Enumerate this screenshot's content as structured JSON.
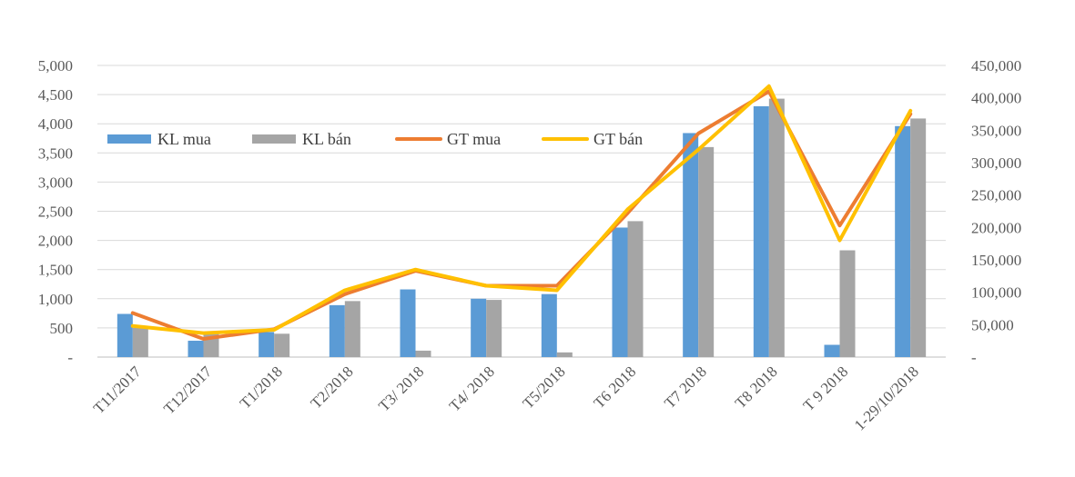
{
  "chart_data": {
    "type": "bar",
    "categories": [
      "T11/2017",
      "T12/2017",
      "T1/2018",
      "T2/2018",
      "T3/ 2018",
      "T4/ 2018",
      "T5/2018",
      "T6 2018",
      "T7 2018",
      "T8 2018",
      "T 9 2018",
      "1-29/10/2018"
    ],
    "y_left": {
      "ylim": [
        0,
        5000
      ],
      "ticks": [
        0,
        500,
        1000,
        1500,
        2000,
        2500,
        3000,
        3500,
        4000,
        4500,
        5000
      ],
      "tick_labels": [
        "-",
        "500",
        "1,000",
        "1,500",
        "2,000",
        "2,500",
        "3,000",
        "3,500",
        "4,000",
        "4,500",
        "5,000"
      ]
    },
    "y_right": {
      "ylim": [
        0,
        450000
      ],
      "ticks": [
        0,
        50000,
        100000,
        150000,
        200000,
        250000,
        300000,
        350000,
        400000,
        450000
      ],
      "tick_labels": [
        "-",
        "50,000",
        "100,000",
        "150,000",
        "200,000",
        "250,000",
        "300,000",
        "350,000",
        "400,000",
        "450,000"
      ]
    },
    "series": [
      {
        "name": "KL mua",
        "type": "bar",
        "axis": "left",
        "color": "#5B9BD5",
        "values": [
          740,
          280,
          430,
          890,
          1160,
          1000,
          1080,
          2220,
          3840,
          4300,
          210,
          3960
        ]
      },
      {
        "name": "KL bán",
        "type": "bar",
        "axis": "left",
        "color": "#A5A5A5",
        "values": [
          500,
          420,
          400,
          960,
          110,
          980,
          80,
          2330,
          3600,
          4430,
          1830,
          4090
        ]
      },
      {
        "name": "GT mua",
        "type": "line",
        "axis": "right",
        "color": "#ED7D31",
        "values": [
          68000,
          28000,
          43000,
          97000,
          133000,
          110000,
          110000,
          222000,
          345000,
          410000,
          203000,
          375000
        ]
      },
      {
        "name": "GT bán",
        "type": "line",
        "axis": "right",
        "color": "#FFC000",
        "values": [
          48000,
          37000,
          42000,
          103000,
          135000,
          110000,
          103000,
          228000,
          320000,
          418000,
          180000,
          380000
        ]
      }
    ],
    "grid": true,
    "legend_position": "top-left"
  }
}
